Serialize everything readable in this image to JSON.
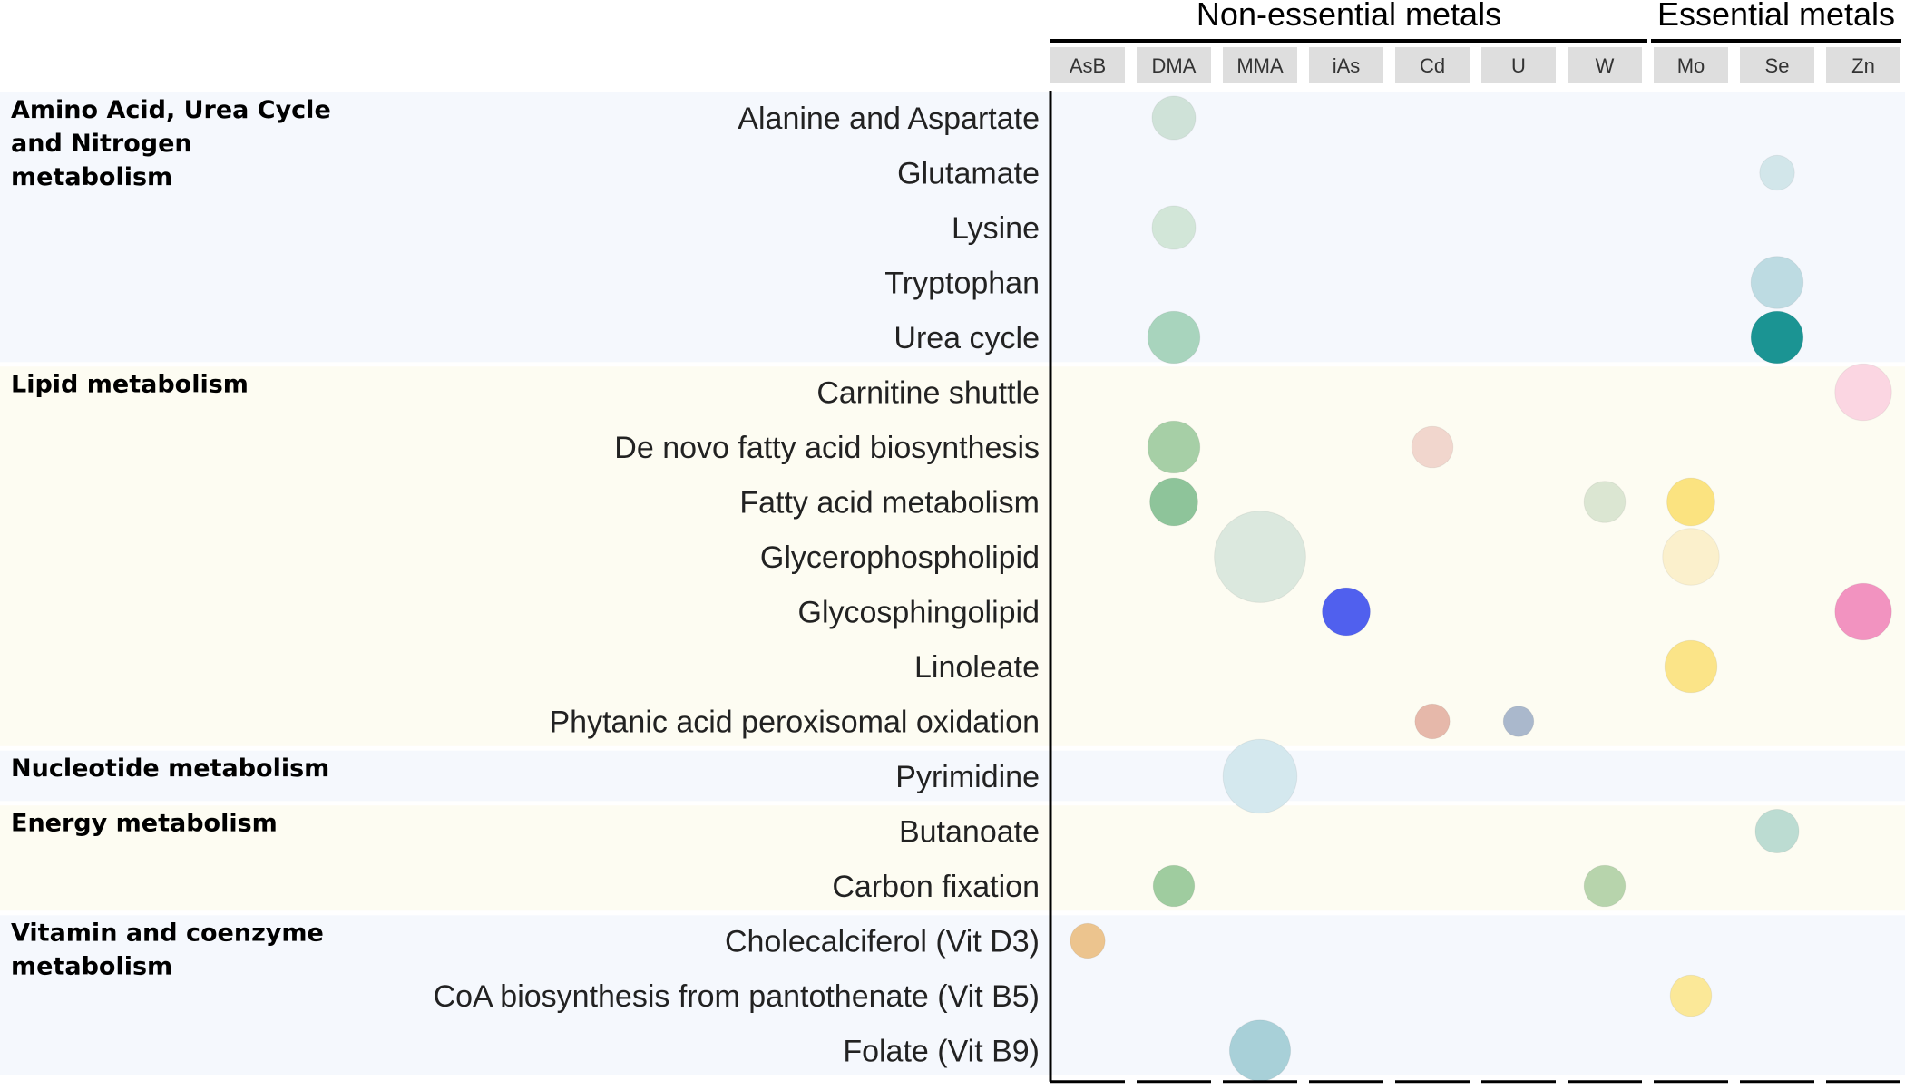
{
  "chart_data": {
    "type": "bubble-matrix",
    "title": "",
    "column_groups": [
      {
        "name": "Non-essential metals",
        "columns": [
          "AsB",
          "DMA",
          "MMA",
          "iAs",
          "Cd",
          "U",
          "W"
        ]
      },
      {
        "name": "Essential metals",
        "columns": [
          "Mo",
          "Se",
          "Zn"
        ]
      }
    ],
    "columns": [
      "AsB",
      "DMA",
      "MMA",
      "iAs",
      "Cd",
      "U",
      "W",
      "Mo",
      "Se",
      "Zn"
    ],
    "categories": [
      {
        "name": "Amino Acid, Urea Cycle\nand Nitrogen\nmetabolism",
        "background": "#f5f8fd",
        "pathways": [
          "Alanine and Aspartate",
          "Glutamate",
          "Lysine",
          "Tryptophan",
          "Urea cycle"
        ]
      },
      {
        "name": "Lipid metabolism",
        "background": "#fdfcf2",
        "pathways": [
          "Carnitine shuttle",
          "De novo fatty acid biosynthesis",
          "Fatty acid metabolism",
          "Glycerophospholipid",
          "Glycosphingolipid",
          "Linoleate",
          "Phytanic acid peroxisomal oxidation"
        ]
      },
      {
        "name": "Nucleotide metabolism",
        "background": "#f5f8fd",
        "pathways": [
          "Pyrimidine"
        ]
      },
      {
        "name": "Energy metabolism",
        "background": "#fdfcf2",
        "pathways": [
          "Butanoate",
          "Carbon fixation"
        ]
      },
      {
        "name": "Vitamin and coenzyme\nmetabolism",
        "background": "#f5f8fd",
        "pathways": [
          "Cholecalciferol (Vit D3)",
          "CoA biosynthesis from pantothenate (Vit B5)",
          "Folate (Vit B9)"
        ]
      }
    ],
    "bubbles": [
      {
        "pathway": "Alanine and Aspartate",
        "metal": "DMA",
        "size": 2,
        "color": "#cfe2d8"
      },
      {
        "pathway": "Glutamate",
        "metal": "Se",
        "size": 1.6,
        "color": "#d2e6ea"
      },
      {
        "pathway": "Lysine",
        "metal": "DMA",
        "size": 2,
        "color": "#d2e6d8"
      },
      {
        "pathway": "Tryptophan",
        "metal": "Se",
        "size": 2.4,
        "color": "#bddbe2"
      },
      {
        "pathway": "Urea cycle",
        "metal": "DMA",
        "size": 2.4,
        "color": "#a8d4bd"
      },
      {
        "pathway": "Urea cycle",
        "metal": "Se",
        "size": 2.4,
        "color": "#1b9493"
      },
      {
        "pathway": "Carnitine shuttle",
        "metal": "Zn",
        "size": 2.6,
        "color": "#fbd6e2"
      },
      {
        "pathway": "De novo fatty acid biosynthesis",
        "metal": "DMA",
        "size": 2.4,
        "color": "#a6cfa6"
      },
      {
        "pathway": "De novo fatty acid biosynthesis",
        "metal": "Cd",
        "size": 1.9,
        "color": "#f1d6cd"
      },
      {
        "pathway": "Fatty acid metabolism",
        "metal": "DMA",
        "size": 2.2,
        "color": "#8ec49a"
      },
      {
        "pathway": "Fatty acid metabolism",
        "metal": "W",
        "size": 1.9,
        "color": "#dbe6d2"
      },
      {
        "pathway": "Fatty acid metabolism",
        "metal": "Mo",
        "size": 2.2,
        "color": "#fbe380"
      },
      {
        "pathway": "Glycerophospholipid",
        "metal": "MMA",
        "size": 4.2,
        "color": "#dbe8de"
      },
      {
        "pathway": "Glycerophospholipid",
        "metal": "Mo",
        "size": 2.6,
        "color": "#fbf0cc"
      },
      {
        "pathway": "Glycosphingolipid",
        "metal": "iAs",
        "size": 2.2,
        "color": "#5060ee"
      },
      {
        "pathway": "Glycosphingolipid",
        "metal": "Zn",
        "size": 2.6,
        "color": "#f293c0"
      },
      {
        "pathway": "Linoleate",
        "metal": "Mo",
        "size": 2.4,
        "color": "#fbe488"
      },
      {
        "pathway": "Phytanic acid peroxisomal oxidation",
        "metal": "Cd",
        "size": 1.6,
        "color": "#e6b8aa"
      },
      {
        "pathway": "Phytanic acid peroxisomal oxidation",
        "metal": "U",
        "size": 1.4,
        "color": "#aab8cc"
      },
      {
        "pathway": "Pyrimidine",
        "metal": "MMA",
        "size": 3.4,
        "color": "#d4e8ee"
      },
      {
        "pathway": "Butanoate",
        "metal": "Se",
        "size": 2,
        "color": "#bcdcd2"
      },
      {
        "pathway": "Carbon fixation",
        "metal": "DMA",
        "size": 1.9,
        "color": "#9fcc9f"
      },
      {
        "pathway": "Carbon fixation",
        "metal": "W",
        "size": 1.9,
        "color": "#b7d4ac"
      },
      {
        "pathway": "Cholecalciferol (Vit D3)",
        "metal": "AsB",
        "size": 1.6,
        "color": "#ecc48e"
      },
      {
        "pathway": "CoA biosynthesis from pantothenate (Vit B5)",
        "metal": "Mo",
        "size": 1.9,
        "color": "#fbe898"
      },
      {
        "pathway": "Folate (Vit B9)",
        "metal": "MMA",
        "size": 2.8,
        "color": "#a8d0d8"
      }
    ],
    "header_cell_color": "#dedede",
    "grid": false,
    "legend": "none"
  }
}
